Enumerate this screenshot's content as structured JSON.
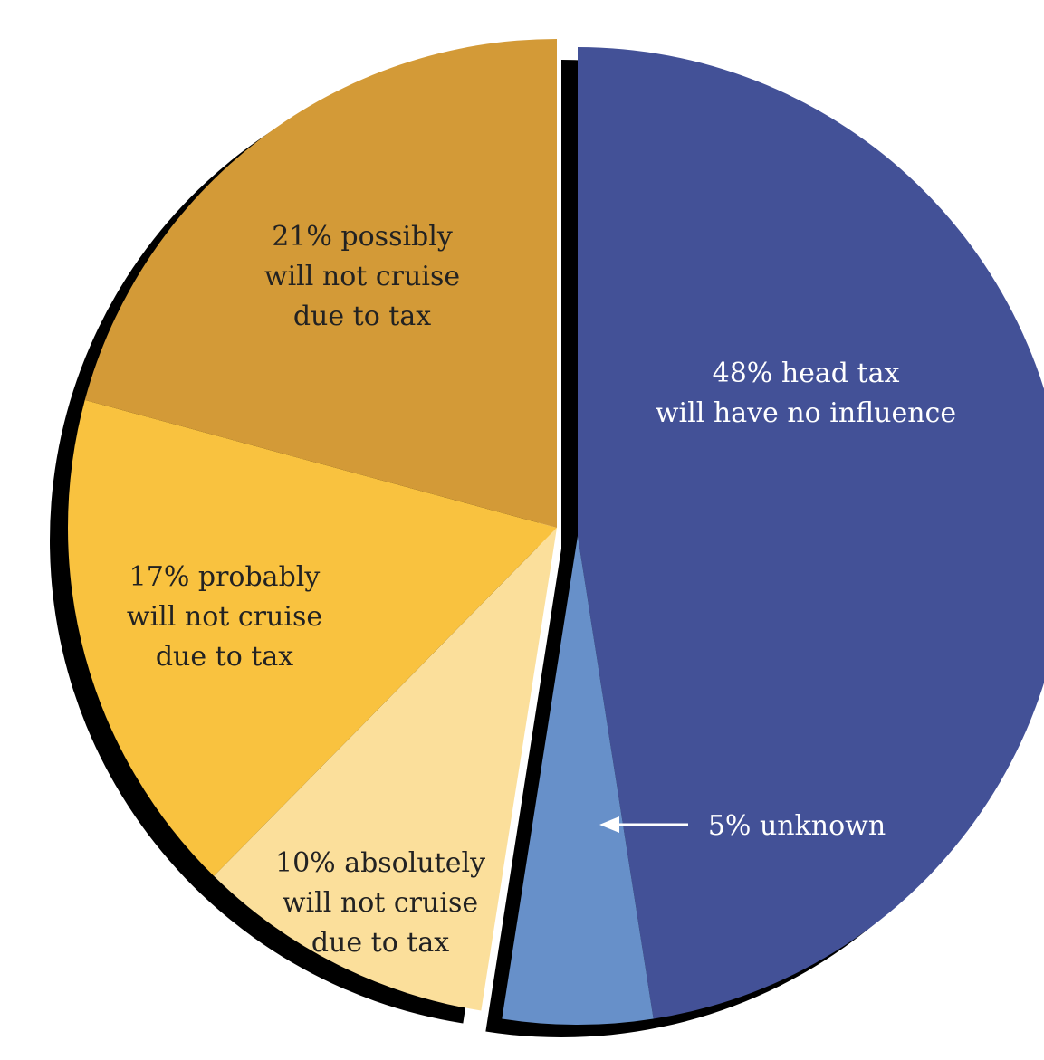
{
  "chart_data": {
    "type": "pie",
    "slices": [
      {
        "label_lines": [
          "48% head tax",
          "will have no influence"
        ],
        "value": 48,
        "color": "#435197",
        "label_color": "#ffffff",
        "group": "right"
      },
      {
        "label_lines": [
          "5% unknown"
        ],
        "value": 5,
        "color": "#6790c9",
        "label_color": "#ffffff",
        "group": "right"
      },
      {
        "label_lines": [
          "10% absolutely",
          "will not cruise",
          "due to tax"
        ],
        "value": 10,
        "color": "#fbdf9b",
        "label_color": "#222222",
        "group": "left"
      },
      {
        "label_lines": [
          "17% probably",
          "will not cruise",
          "due to tax"
        ],
        "value": 17,
        "color": "#f9c23f",
        "label_color": "#222222",
        "group": "left"
      },
      {
        "label_lines": [
          "21% possibly",
          "will not cruise",
          "due to tax"
        ],
        "value": 21,
        "color": "#d39a37",
        "label_color": "#222222",
        "group": "left"
      }
    ],
    "exploded": true,
    "shadow_color": "#000000",
    "legend": "none"
  }
}
